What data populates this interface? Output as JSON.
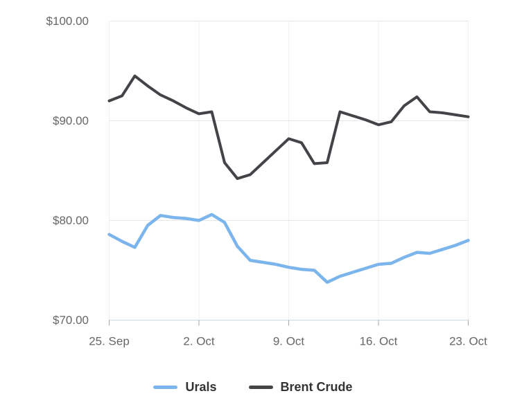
{
  "chart_data": {
    "type": "line",
    "x": [
      "25. Sep",
      "26. Sep",
      "27. Sep",
      "28. Sep",
      "29. Sep",
      "30. Sep",
      "1. Oct",
      "2. Oct",
      "3. Oct",
      "4. Oct",
      "5. Oct",
      "6. Oct",
      "7. Oct",
      "8. Oct",
      "9. Oct",
      "10. Oct",
      "11. Oct",
      "12. Oct",
      "13. Oct",
      "14. Oct",
      "15. Oct",
      "16. Oct",
      "17. Oct",
      "18. Oct",
      "19. Oct",
      "20. Oct",
      "21. Oct",
      "22. Oct",
      "23. Oct"
    ],
    "series": [
      {
        "name": "Urals",
        "color": "#7cb5ec",
        "stroke_width": 4.5,
        "values": [
          78.6,
          77.9,
          77.3,
          79.5,
          80.5,
          80.3,
          80.2,
          80.0,
          80.6,
          79.8,
          77.4,
          76.0,
          75.8,
          75.6,
          75.3,
          75.1,
          75.0,
          73.8,
          74.4,
          74.8,
          75.2,
          75.6,
          75.7,
          76.3,
          76.8,
          76.7,
          77.1,
          77.5,
          78.0
        ]
      },
      {
        "name": "Brent Crude",
        "color": "#434348",
        "stroke_width": 4,
        "values": [
          92.0,
          92.5,
          94.5,
          93.5,
          92.6,
          92.0,
          91.3,
          90.7,
          90.9,
          85.8,
          84.2,
          84.6,
          85.8,
          87.0,
          88.2,
          87.8,
          85.7,
          85.8,
          90.9,
          90.5,
          90.1,
          89.6,
          89.9,
          91.5,
          92.4,
          90.9,
          90.8,
          90.6,
          90.4
        ]
      }
    ],
    "title": "",
    "xlabel": "",
    "ylabel": "",
    "ylim": [
      70,
      100
    ],
    "yticks": [
      {
        "value": 100,
        "label": "$100.00"
      },
      {
        "value": 90,
        "label": "$90.00"
      },
      {
        "value": 80,
        "label": "$80.00"
      },
      {
        "value": 70,
        "label": "$70.00"
      }
    ],
    "xticks": [
      {
        "index": 0,
        "label": "25. Sep"
      },
      {
        "index": 7,
        "label": "2. Oct"
      },
      {
        "index": 14,
        "label": "9. Oct"
      },
      {
        "index": 21,
        "label": "16. Oct"
      },
      {
        "index": 28,
        "label": "23. Oct"
      }
    ],
    "grid": true,
    "legend_position": "bottom"
  },
  "legend": {
    "items": [
      {
        "label": "Urals"
      },
      {
        "label": "Brent Crude"
      }
    ]
  },
  "colors": {
    "background": "#ffffff",
    "grid_horizontal": "#e6e6e6",
    "grid_vertical": "#f0f0f0",
    "axis_baseline": "#ccd6eb",
    "tick": "#a5a5ad",
    "axis_text": "#666666",
    "legend_text": "#333333"
  }
}
